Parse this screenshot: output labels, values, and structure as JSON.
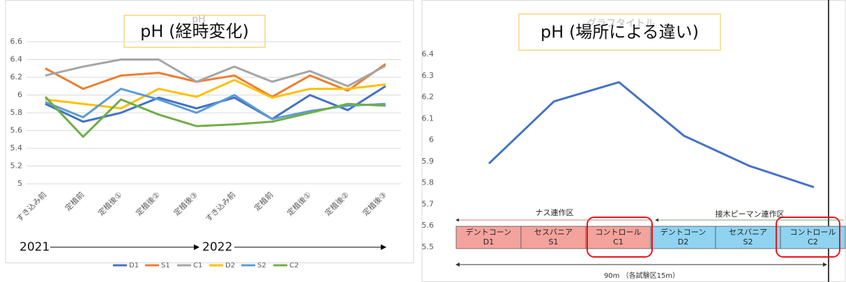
{
  "chart_data": [
    {
      "type": "line",
      "title": "pH (経時変化)",
      "ghost_title": "pH",
      "categories": [
        "すき込み前",
        "定植前",
        "定植後①",
        "定植後②",
        "定植後③",
        "すき込み前",
        "定植前",
        "定植後①",
        "定植後②",
        "定植後③"
      ],
      "series": [
        {
          "name": "D1",
          "color": "#4472c4",
          "values": [
            5.9,
            5.7,
            5.8,
            5.97,
            5.85,
            5.97,
            5.73,
            6.0,
            5.83,
            6.1
          ]
        },
        {
          "name": "S1",
          "color": "#ed7d31",
          "values": [
            6.3,
            6.07,
            6.22,
            6.25,
            6.15,
            6.22,
            5.98,
            6.22,
            6.05,
            6.35
          ]
        },
        {
          "name": "C1",
          "color": "#a5a5a5",
          "values": [
            6.22,
            6.32,
            6.4,
            6.4,
            6.15,
            6.32,
            6.15,
            6.27,
            6.1,
            6.33
          ]
        },
        {
          "name": "D2",
          "color": "#ffc000",
          "values": [
            5.95,
            5.9,
            5.85,
            6.07,
            5.98,
            6.17,
            5.97,
            6.07,
            6.07,
            6.12
          ]
        },
        {
          "name": "S2",
          "color": "#5b9bd5",
          "values": [
            5.92,
            5.75,
            6.07,
            5.95,
            5.8,
            6.0,
            5.73,
            5.82,
            5.88,
            5.9
          ]
        },
        {
          "name": "C2",
          "color": "#70ad47",
          "values": [
            5.98,
            5.53,
            5.95,
            5.78,
            5.65,
            5.67,
            5.7,
            5.8,
            5.9,
            5.88
          ]
        }
      ],
      "ylim": [
        5,
        6.6
      ],
      "yticks": [
        5,
        5.2,
        5.4,
        5.6,
        5.8,
        6,
        6.2,
        6.4,
        6.6
      ],
      "grid": true,
      "legend": "bottom",
      "annotations": [
        "2021",
        "2022"
      ]
    },
    {
      "type": "line",
      "title": "pH (場所による違い)",
      "ghost_title": "グラフタイトル",
      "categories": [
        "D1",
        "S1",
        "C1",
        "D2",
        "S2",
        "C2"
      ],
      "box_names": [
        "デントコーン",
        "セスバニア",
        "コントロール",
        "デントコーン",
        "セスバニア",
        "コントロール"
      ],
      "series": [
        {
          "name": "pH",
          "color": "#4472c4",
          "values": [
            5.89,
            6.18,
            6.27,
            6.02,
            5.88,
            5.78
          ]
        }
      ],
      "ylim": [
        5.5,
        6.4
      ],
      "yticks": [
        5.5,
        5.6,
        5.7,
        5.8,
        5.9,
        6,
        6.1,
        6.2,
        6.3,
        6.4
      ],
      "grid": false,
      "region_labels": [
        "ナス連作区",
        "接木ピーマン連作区"
      ],
      "footnote": "90m （各試験区15m）"
    }
  ]
}
